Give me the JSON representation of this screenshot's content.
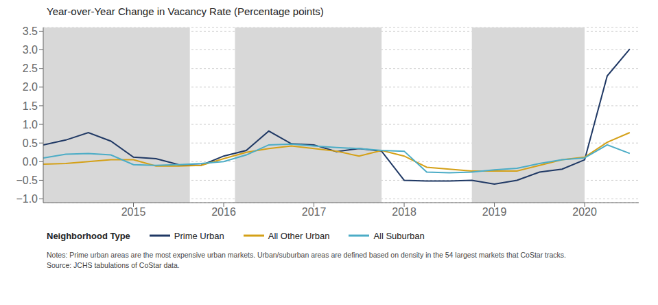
{
  "chart_data": {
    "type": "line",
    "title": "Year-over-Year Change in Vacancy Rate (Percentage points)",
    "x": [
      2014.0,
      2014.25,
      2014.5,
      2014.75,
      2015.0,
      2015.25,
      2015.5,
      2015.75,
      2016.0,
      2016.25,
      2016.5,
      2016.75,
      2017.0,
      2017.25,
      2017.5,
      2017.75,
      2018.0,
      2018.25,
      2018.5,
      2018.75,
      2019.0,
      2019.25,
      2019.5,
      2019.75,
      2020.0,
      2020.25,
      2020.5
    ],
    "series": [
      {
        "name": "Prime Urban",
        "color": "#1f3864",
        "values": [
          0.45,
          0.58,
          0.78,
          0.55,
          0.12,
          0.08,
          -0.08,
          -0.1,
          0.15,
          0.3,
          0.82,
          0.48,
          0.45,
          0.27,
          0.35,
          0.28,
          -0.5,
          -0.52,
          -0.52,
          -0.5,
          -0.6,
          -0.5,
          -0.28,
          -0.2,
          0.05,
          2.3,
          3.02
        ]
      },
      {
        "name": "All Other Urban",
        "color": "#d4a017",
        "values": [
          -0.07,
          -0.05,
          0.0,
          0.05,
          0.05,
          -0.12,
          -0.12,
          -0.1,
          0.08,
          0.25,
          0.35,
          0.42,
          0.35,
          0.28,
          0.15,
          0.3,
          0.15,
          -0.15,
          -0.2,
          -0.25,
          -0.25,
          -0.25,
          -0.1,
          0.05,
          0.12,
          0.52,
          0.78
        ]
      },
      {
        "name": "All Suburban",
        "color": "#4bacc6",
        "values": [
          0.1,
          0.2,
          0.22,
          0.18,
          -0.08,
          -0.1,
          -0.08,
          -0.05,
          0.0,
          0.18,
          0.45,
          0.47,
          0.42,
          0.38,
          0.35,
          0.3,
          0.28,
          -0.28,
          -0.3,
          -0.28,
          -0.22,
          -0.18,
          -0.05,
          0.05,
          0.1,
          0.45,
          0.22
        ]
      }
    ],
    "xlim": [
      2014.0,
      2020.6
    ],
    "xticks": [
      2015.0,
      2016.0,
      2017.0,
      2018.0,
      2019.0,
      2020.0
    ],
    "ylim": [
      -1.1,
      3.6
    ],
    "yticks": [
      {
        "value": -1.0,
        "label": "−1.0"
      },
      {
        "value": -0.5,
        "label": "−0.5"
      },
      {
        "value": 0.0,
        "label": "0.0"
      },
      0.5,
      {
        "value": 1.0,
        "label": "1.0"
      },
      1.5,
      {
        "value": 2.0,
        "label": "2.0"
      },
      2.5,
      {
        "value": 3.0,
        "label": "3.0"
      },
      3.5
    ],
    "shaded_regions": [
      {
        "x": [
          2014.0,
          2015.625
        ],
        "color": "#d8d8d8"
      },
      {
        "x": [
          2016.125,
          2017.75
        ],
        "color": "#d8d8d8"
      },
      {
        "x": [
          2018.75,
          2020.0
        ],
        "color": "#d8d8d8"
      }
    ],
    "grid": true,
    "legend": "bottom",
    "legend_title": "Neighborhood Type",
    "notes": [
      "Notes: Prime urban areas are the most expensive urban markets. Urban/suburban areas are defined based on density in the 54 largest markets that CoStar tracks.",
      "Source: JCHS tabulations of CoStar data."
    ]
  }
}
